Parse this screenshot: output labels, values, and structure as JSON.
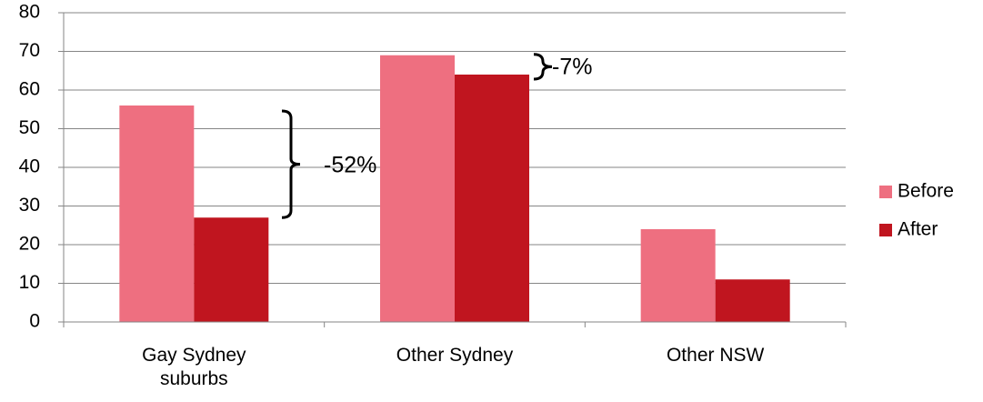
{
  "chart_data": {
    "type": "bar",
    "categories": [
      "Gay Sydney suburbs",
      "Other Sydney",
      "Other NSW"
    ],
    "series": [
      {
        "name": "Before",
        "color": "#ee6f80",
        "values": [
          56,
          69,
          24
        ]
      },
      {
        "name": "After",
        "color": "#c0151f",
        "values": [
          27,
          64,
          11
        ]
      }
    ],
    "ylim": [
      0,
      80
    ],
    "yticks": [
      0,
      10,
      20,
      30,
      40,
      50,
      60,
      70,
      80
    ],
    "grid": true,
    "legend": "right",
    "annotations": [
      "-52%",
      "-7%"
    ]
  }
}
